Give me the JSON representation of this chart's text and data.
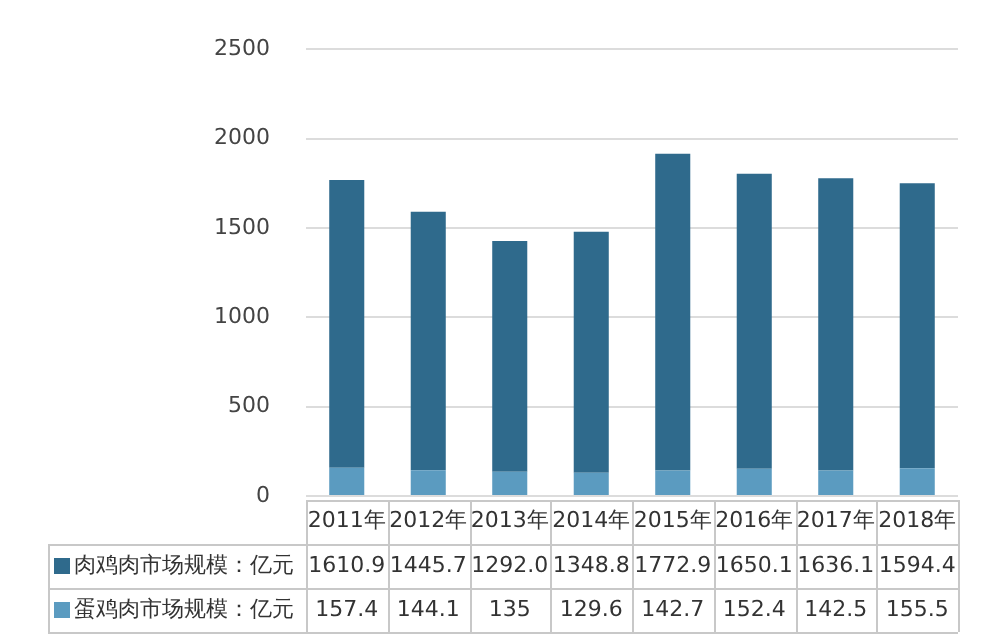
{
  "chart_data": {
    "type": "bar",
    "stacked": true,
    "categories": [
      "2011年",
      "2012年",
      "2013年",
      "2014年",
      "2015年",
      "2016年",
      "2017年",
      "2018年"
    ],
    "series": [
      {
        "name": "蛋鸡肉市场规模：亿元",
        "color": "#5b9bc0",
        "values": [
          157.4,
          144.1,
          135,
          129.6,
          142.7,
          152.4,
          142.5,
          155.5
        ],
        "value_labels": [
          "157.4",
          "144.1",
          "135",
          "129.6",
          "142.7",
          "152.4",
          "142.5",
          "155.5"
        ]
      },
      {
        "name": "肉鸡肉市场规模：亿元",
        "color": "#2f6a8c",
        "values": [
          1610.9,
          1445.7,
          1292.0,
          1348.8,
          1772.9,
          1650.1,
          1636.1,
          1594.4
        ],
        "value_labels": [
          "1610.9",
          "1445.7",
          "1292.0",
          "1348.8",
          "1772.9",
          "1650.1",
          "1636.1",
          "1594.4"
        ]
      }
    ],
    "ylim": [
      0,
      2500
    ],
    "yticks": [
      0,
      500,
      1000,
      1500,
      2000,
      2500
    ],
    "grid": "y",
    "legend": "bottom"
  }
}
